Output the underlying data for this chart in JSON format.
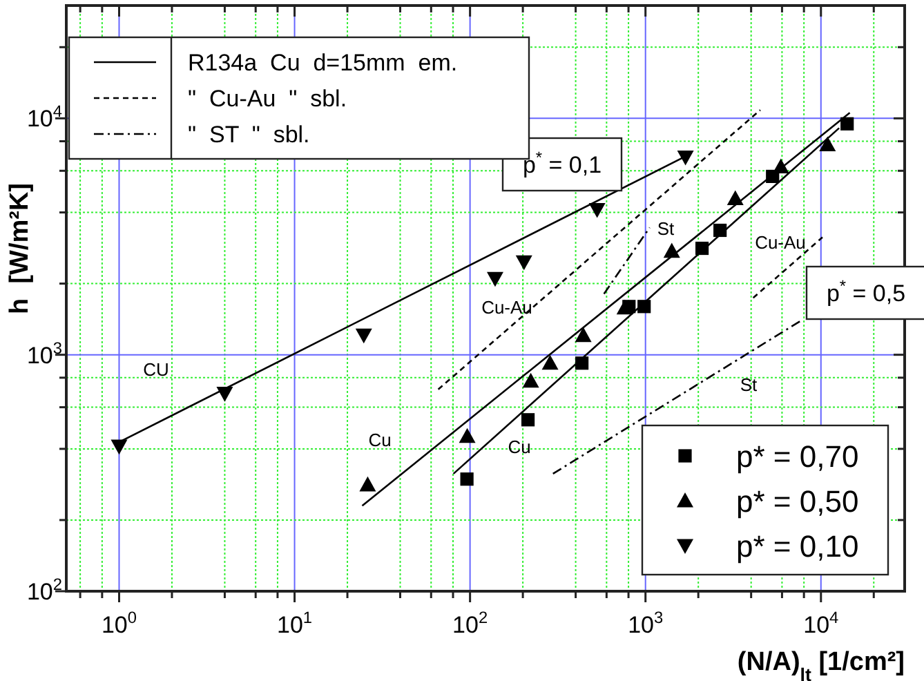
{
  "chart_data": {
    "type": "scatter",
    "xlabel": "(N/A)$_{lt}$ [1/cm²]",
    "ylabel": "h  [W/m²K]",
    "log": "xy",
    "grid": true,
    "legend": "bottom right",
    "xlim": [
      0.5,
      30000
    ],
    "ylim": [
      100,
      30000
    ],
    "xticks": [
      {
        "value": 0.6,
        "label": null
      },
      {
        "value": 0.8,
        "label": null
      },
      {
        "value": 1,
        "label": "10$^{0}$"
      },
      {
        "value": 2,
        "label": null
      },
      {
        "value": 4,
        "label": null
      },
      {
        "value": 6,
        "label": null
      },
      {
        "value": 8,
        "label": null
      },
      {
        "value": 10,
        "label": "10$^{1}$"
      },
      {
        "value": 20,
        "label": null
      },
      {
        "value": 40,
        "label": null
      },
      {
        "value": 60,
        "label": null
      },
      {
        "value": 80,
        "label": null
      },
      {
        "value": 100,
        "label": "10$^{2}$"
      },
      {
        "value": 200,
        "label": null
      },
      {
        "value": 400,
        "label": null
      },
      {
        "value": 600,
        "label": null
      },
      {
        "value": 800,
        "label": null
      },
      {
        "value": 1000,
        "label": "10$^{3}$"
      },
      {
        "value": 2000,
        "label": null
      },
      {
        "value": 4000,
        "label": null
      },
      {
        "value": 6000,
        "label": null
      },
      {
        "value": 8000,
        "label": null
      },
      {
        "value": 10000,
        "label": "10$^{4}$"
      },
      {
        "value": 20000,
        "label": null
      }
    ],
    "yticks": [
      {
        "value": 100,
        "label": "10$^{2}$"
      },
      {
        "value": 200,
        "label": null
      },
      {
        "value": 400,
        "label": null
      },
      {
        "value": 600,
        "label": null
      },
      {
        "value": 800,
        "label": null
      },
      {
        "value": 1000,
        "label": "10$^{3}$"
      },
      {
        "value": 2000,
        "label": null
      },
      {
        "value": 4000,
        "label": null
      },
      {
        "value": 6000,
        "label": null
      },
      {
        "value": 8000,
        "label": null
      },
      {
        "value": 10000,
        "label": "10$^{4}$"
      },
      {
        "value": 20000,
        "label": null
      }
    ],
    "series": [
      {
        "type": "line",
        "name": "R134a  Cu  d=15mm  em.",
        "color": "#000000",
        "line_style": "solid",
        "x": [
          1,
          1720
        ],
        "values": [
          427,
          6950
        ]
      },
      {
        "type": "line",
        "color": "#000000",
        "line_style": "solid",
        "x": [
          24.3,
          14600
        ],
        "values": [
          230,
          10560
        ]
      },
      {
        "type": "line",
        "color": "#000000",
        "line_style": "solid",
        "x": [
          80.5,
          12700
        ],
        "values": [
          314,
          9100
        ]
      },
      {
        "type": "line",
        "name": "\"  Cu-Au  \"  sbl.",
        "color": "#000000",
        "line_style": "dashed",
        "x": [
          65.9,
          4510
        ],
        "values": [
          714,
          10840
        ]
      },
      {
        "type": "line",
        "color": "#000000",
        "line_style": "dashed",
        "x": [
          4110,
          10200
        ],
        "values": [
          1740,
          3140
        ]
      },
      {
        "type": "line",
        "name": "\"  ST  \"  sbl.",
        "color": "#000000",
        "line_style": "dashdot",
        "x": [
          297,
          7760
        ],
        "values": [
          314,
          1400
        ]
      },
      {
        "type": "line",
        "color": "#000000",
        "line_style": "dashdot",
        "x": [
          580,
          1056
        ],
        "values": [
          1810,
          3450
        ]
      },
      {
        "name": "p* = 0,70",
        "color": "#000000",
        "marker": "square",
        "x": [
          96,
          214,
          434,
          805,
          982,
          2100,
          2660,
          5300,
          14100
        ],
        "values": [
          298,
          531,
          922,
          1600,
          1600,
          2820,
          3360,
          5680,
          9480
        ]
      },
      {
        "name": "p* = 0,50",
        "color": "#000000",
        "marker": "triangle",
        "x": [
          26.1,
          96.4,
          222,
          286,
          442,
          762,
          1412,
          3250,
          5910,
          10900
        ],
        "values": [
          282,
          452,
          774,
          922,
          1208,
          1580,
          2745,
          4580,
          6240,
          7740
        ]
      },
      {
        "name": "p* = 0,10",
        "color": "#000000",
        "marker": "triangle-down",
        "x": [
          1,
          4,
          24.8,
          139,
          203,
          530,
          1690
        ],
        "values": [
          410,
          686,
          1210,
          2100,
          2470,
          4110,
          6850
        ]
      }
    ],
    "annotations": [
      "CU",
      "Cu",
      "Cu",
      "Cu-Au",
      "St",
      "Cu-Au",
      "St",
      "p$^{*}$ = 0,1",
      "p$^{*}$ = 0,5"
    ]
  }
}
